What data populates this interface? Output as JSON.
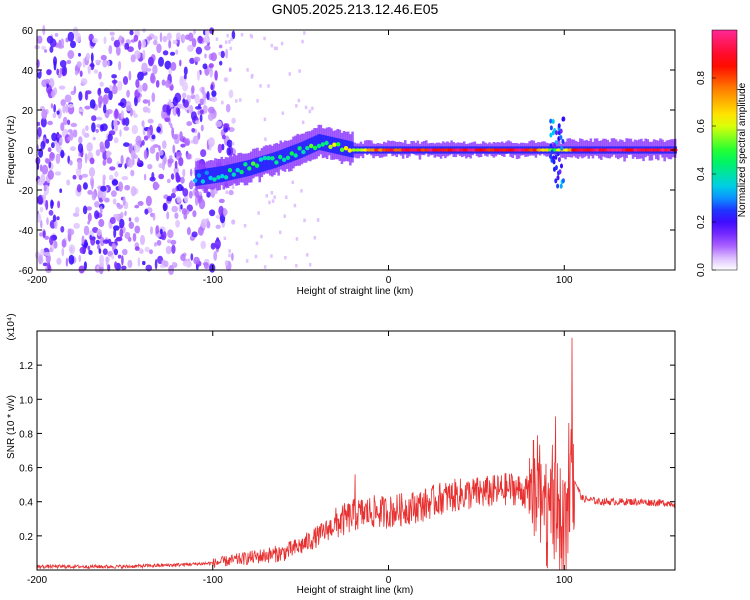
{
  "chart_data": [
    {
      "type": "heatmap",
      "title": "GN05.2025.213.12.46.E05",
      "xlabel": "Height of straight line (km)",
      "ylabel": "Frequency (Hz)",
      "xlim": [
        -200,
        163
      ],
      "ylim": [
        -60,
        60
      ],
      "xticks": [
        -200,
        -100,
        0,
        100
      ],
      "yticks": [
        -60,
        -40,
        -20,
        0,
        20,
        40,
        60
      ],
      "colorbar": {
        "label": "Normalized spectral amplitude",
        "range": [
          0,
          1
        ],
        "ticks": [
          0.0,
          0.2,
          0.4,
          0.6,
          0.8
        ],
        "colors": [
          "#ffffff",
          "#a64dff",
          "#3a00ff",
          "#00c8ff",
          "#00ff40",
          "#ffff00",
          "#ff8000",
          "#ff0000",
          "#ff3399"
        ]
      },
      "features": {
        "noise_region_x": [
          -200,
          -100
        ],
        "ridge_points": [
          {
            "x": -110,
            "f": -14,
            "a": 0.35
          },
          {
            "x": -95,
            "f": -12,
            "a": 0.4
          },
          {
            "x": -80,
            "f": -9,
            "a": 0.45
          },
          {
            "x": -65,
            "f": -5,
            "a": 0.45
          },
          {
            "x": -50,
            "f": 0,
            "a": 0.45
          },
          {
            "x": -40,
            "f": 4,
            "a": 0.45
          },
          {
            "x": -30,
            "f": 2,
            "a": 0.55
          },
          {
            "x": -20,
            "f": 0,
            "a": 0.6
          },
          {
            "x": 0,
            "f": 0,
            "a": 0.85
          },
          {
            "x": 40,
            "f": 0,
            "a": 0.9
          },
          {
            "x": 80,
            "f": 0,
            "a": 0.9
          },
          {
            "x": 95,
            "f": 0,
            "a": 0.5
          },
          {
            "x": 110,
            "f": 0,
            "a": 0.95
          },
          {
            "x": 163,
            "f": 0,
            "a": 0.95
          }
        ]
      }
    },
    {
      "type": "line",
      "xlabel": "Height of straight line (km)",
      "ylabel": "SNR (10 * v/v)",
      "yscale_label": "(x10⁴)",
      "xlim": [
        -200,
        163
      ],
      "ylim": [
        0,
        1.4
      ],
      "xticks": [
        -200,
        -100,
        0,
        100
      ],
      "yticks": [
        0.2,
        0.4,
        0.6,
        0.8,
        1.0,
        1.2
      ],
      "color": "#e83030",
      "x": [
        -200,
        -150,
        -120,
        -100,
        -80,
        -60,
        -50,
        -40,
        -30,
        -20,
        -10,
        0,
        10,
        20,
        30,
        40,
        50,
        60,
        70,
        80,
        90,
        95,
        100,
        105,
        110,
        120,
        140,
        163
      ],
      "y": [
        0.02,
        0.02,
        0.03,
        0.04,
        0.07,
        0.1,
        0.14,
        0.2,
        0.27,
        0.32,
        0.34,
        0.34,
        0.36,
        0.38,
        0.42,
        0.44,
        0.45,
        0.46,
        0.48,
        0.45,
        0.35,
        0.3,
        0.2,
        0.55,
        0.42,
        0.4,
        0.4,
        0.39
      ],
      "spikes": [
        {
          "x": -19,
          "y": 0.56
        },
        {
          "x": 95,
          "y": 0.9
        },
        {
          "x": 104.5,
          "y": 1.36
        }
      ]
    }
  ]
}
